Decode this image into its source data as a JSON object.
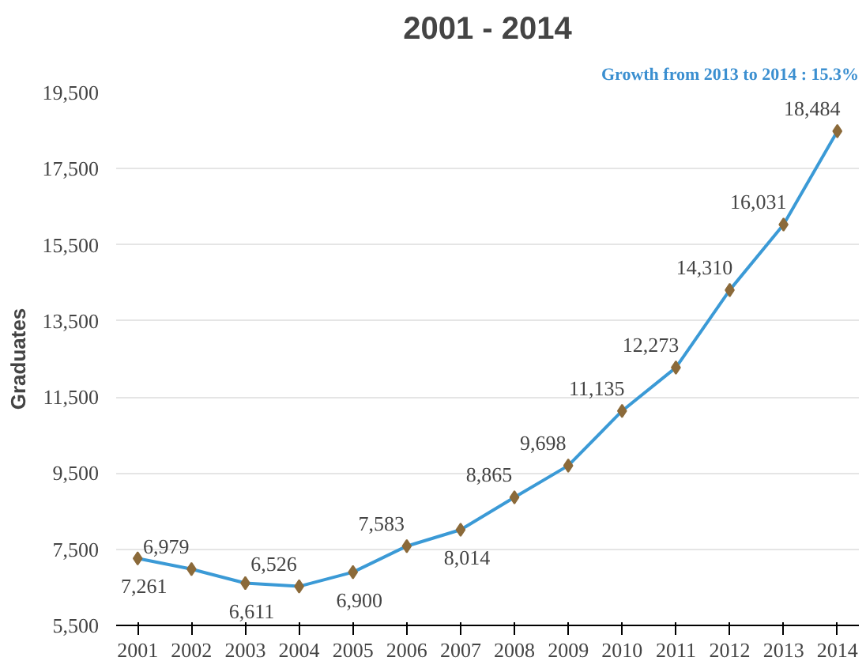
{
  "chart_data": {
    "type": "line",
    "title": "2001 - 2014",
    "ylabel": "Graduates",
    "annotations": [
      "Growth from 2013 to 2014 : 15.3%"
    ],
    "categories": [
      "2001",
      "2002",
      "2003",
      "2004",
      "2005",
      "2006",
      "2007",
      "2008",
      "2009",
      "2010",
      "2011",
      "2012",
      "2013",
      "2014"
    ],
    "series": [
      {
        "color": "#3b9ad6",
        "values": [
          7261,
          6979,
          6611,
          6526,
          6900,
          7583,
          8014,
          8865,
          9698,
          11135,
          12273,
          14310,
          16031,
          18484
        ],
        "value_labels": [
          "7,261",
          "6,979",
          "6,611",
          "6,526",
          "6,900",
          "7,583",
          "8,014",
          "8,865",
          "9,698",
          "11,135",
          "12,273",
          "14,310",
          "16,031",
          "18,484"
        ]
      }
    ],
    "ylim": [
      5500,
      19500
    ],
    "yticks": [
      {
        "value": 5500,
        "label": "5,500"
      },
      {
        "value": 7500,
        "label": "7,500"
      },
      {
        "value": 9500,
        "label": "9,500"
      },
      {
        "value": 11500,
        "label": "11,500"
      },
      {
        "value": 13500,
        "label": "13,500"
      },
      {
        "value": 15500,
        "label": "15,500"
      },
      {
        "value": 17500,
        "label": "17,500"
      },
      {
        "value": 19500,
        "label": "19,500"
      }
    ],
    "grid": "y",
    "marker": "diamond",
    "line_style": "solid"
  }
}
